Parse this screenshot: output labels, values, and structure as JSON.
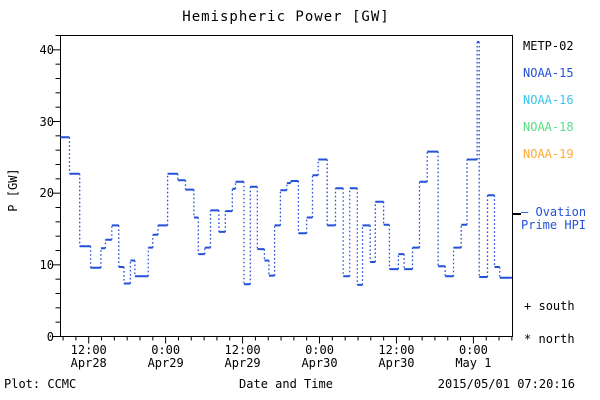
{
  "title": "Hemispheric Power [GW]",
  "footer": {
    "plot_credit": "Plot: CCMC",
    "timestamp": "2015/05/01 07:20:16"
  },
  "legend": {
    "satellites": [
      {
        "label": "METP-02",
        "color": "#000000"
      },
      {
        "label": "NOAA-15",
        "color": "#2451d8"
      },
      {
        "label": "NOAA-16",
        "color": "#3ac4ee"
      },
      {
        "label": "NOAA-18",
        "color": "#58dd85"
      },
      {
        "label": "NOAA-19",
        "color": "#ffaa33"
      }
    ],
    "ovation": {
      "symbol": "—",
      "line1": "Ovation",
      "line2": "Prime HPI",
      "color": "#2451d8"
    },
    "markers": [
      {
        "symbol": "+",
        "label": "south"
      },
      {
        "symbol": "*",
        "label": "north"
      }
    ]
  },
  "chart_data": {
    "type": "line",
    "style": "step-with-dotted-risers",
    "title": "Hemispheric Power [GW]",
    "xlabel": "Date and Time",
    "ylabel": "P [GW]",
    "ylim": [
      0,
      42
    ],
    "y_major_ticks": [
      0,
      10,
      20,
      30,
      40
    ],
    "y_minor_step": 2,
    "x_unit": "hours since 2015-04-28 00:00",
    "xlim_hours": [
      7.6,
      78.1
    ],
    "x_minor_step_hours": 2,
    "x_major_ticks": [
      {
        "hour": 12,
        "time": "12:00",
        "date": "Apr28"
      },
      {
        "hour": 24,
        "time": "0:00",
        "date": "Apr29"
      },
      {
        "hour": 36,
        "time": "12:00",
        "date": "Apr29"
      },
      {
        "hour": 48,
        "time": "0:00",
        "date": "Apr30"
      },
      {
        "hour": 60,
        "time": "12:00",
        "date": "Apr30"
      },
      {
        "hour": 72,
        "time": "0:00",
        "date": "May 1"
      }
    ],
    "grid": false,
    "legend_position": "right-outside",
    "series": [
      {
        "name": "Ovation Prime HPI",
        "unit": "GW",
        "color": "#2451d8",
        "segments_hours_gw": [
          [
            7.6,
            9.0,
            27.8
          ],
          [
            9.0,
            10.6,
            22.7
          ],
          [
            10.6,
            12.3,
            12.6
          ],
          [
            12.3,
            13.9,
            9.6
          ],
          [
            13.9,
            14.6,
            12.3
          ],
          [
            14.6,
            15.6,
            13.5
          ],
          [
            15.6,
            16.7,
            15.5
          ],
          [
            16.7,
            17.5,
            9.7
          ],
          [
            17.5,
            18.5,
            7.4
          ],
          [
            18.5,
            19.2,
            10.6
          ],
          [
            19.2,
            21.3,
            8.4
          ],
          [
            21.3,
            22.0,
            12.4
          ],
          [
            22.0,
            22.8,
            14.2
          ],
          [
            22.8,
            24.3,
            15.5
          ],
          [
            24.3,
            25.9,
            22.7
          ],
          [
            25.9,
            27.1,
            21.8
          ],
          [
            27.1,
            28.4,
            20.5
          ],
          [
            28.4,
            29.1,
            16.6
          ],
          [
            29.1,
            30.1,
            11.5
          ],
          [
            30.1,
            31.0,
            12.4
          ],
          [
            31.0,
            32.3,
            17.6
          ],
          [
            32.3,
            33.3,
            14.6
          ],
          [
            33.3,
            34.4,
            17.5
          ],
          [
            34.4,
            34.9,
            20.6
          ],
          [
            34.9,
            36.2,
            21.6
          ],
          [
            36.2,
            37.2,
            7.3
          ],
          [
            37.2,
            38.3,
            20.9
          ],
          [
            38.3,
            39.4,
            12.2
          ],
          [
            39.4,
            40.1,
            10.6
          ],
          [
            40.1,
            41.0,
            8.5
          ],
          [
            41.0,
            41.9,
            15.5
          ],
          [
            41.9,
            42.9,
            20.4
          ],
          [
            42.9,
            43.5,
            21.4
          ],
          [
            43.5,
            44.7,
            21.7
          ],
          [
            44.7,
            46.0,
            14.4
          ],
          [
            46.0,
            46.9,
            16.6
          ],
          [
            46.9,
            47.8,
            22.5
          ],
          [
            47.8,
            49.2,
            24.7
          ],
          [
            49.2,
            50.5,
            15.5
          ],
          [
            50.5,
            51.7,
            20.7
          ],
          [
            51.7,
            52.7,
            8.4
          ],
          [
            52.7,
            53.9,
            20.7
          ],
          [
            53.9,
            54.7,
            7.2
          ],
          [
            54.7,
            55.9,
            15.5
          ],
          [
            55.9,
            56.7,
            10.4
          ],
          [
            56.7,
            58.0,
            18.8
          ],
          [
            58.0,
            58.9,
            15.6
          ],
          [
            58.9,
            60.3,
            9.4
          ],
          [
            60.3,
            61.2,
            11.5
          ],
          [
            61.2,
            62.5,
            9.4
          ],
          [
            62.5,
            63.6,
            12.4
          ],
          [
            63.6,
            64.8,
            21.6
          ],
          [
            64.8,
            66.5,
            25.8
          ],
          [
            66.5,
            67.6,
            9.8
          ],
          [
            67.6,
            68.9,
            8.4
          ],
          [
            68.9,
            70.1,
            12.4
          ],
          [
            70.1,
            71.0,
            15.6
          ],
          [
            71.0,
            72.6,
            24.7
          ],
          [
            72.6,
            72.9,
            41.1
          ],
          [
            72.9,
            74.2,
            8.3
          ],
          [
            74.2,
            75.3,
            19.7
          ],
          [
            75.3,
            76.1,
            9.7
          ],
          [
            76.1,
            78.0,
            8.2
          ]
        ]
      }
    ]
  }
}
